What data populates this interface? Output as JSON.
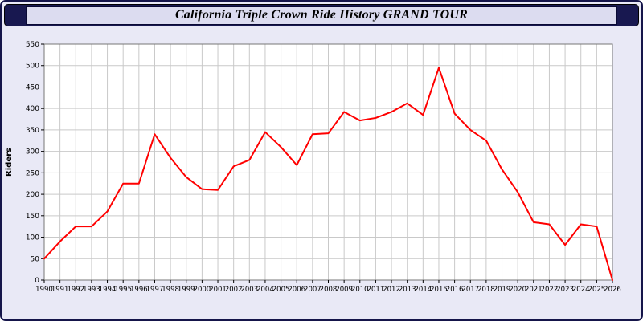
{
  "title": "California Triple Crown Ride History GRAND TOUR",
  "chart_data": {
    "type": "line",
    "title": "California Triple Crown Ride History GRAND TOUR",
    "xlabel": "",
    "ylabel": "Riders",
    "ylim": [
      0,
      550
    ],
    "ytick_step": 50,
    "grid": true,
    "legend_position": "none",
    "line_color": "#ff0000",
    "x": [
      1990,
      1991,
      1992,
      1993,
      1994,
      1995,
      1996,
      1997,
      1998,
      1999,
      2000,
      2001,
      2002,
      2003,
      2004,
      2005,
      2006,
      2007,
      2008,
      2009,
      2010,
      2011,
      2012,
      2013,
      2014,
      2015,
      2016,
      2017,
      2018,
      2019,
      2020,
      2021,
      2022,
      2023,
      2024,
      2025,
      2026
    ],
    "series": [
      {
        "name": "Riders",
        "values": [
          50,
          90,
          125,
          125,
          160,
          225,
          225,
          340,
          285,
          240,
          212,
          210,
          265,
          280,
          345,
          310,
          268,
          340,
          342,
          392,
          372,
          378,
          392,
          412,
          385,
          495,
          388,
          350,
          325,
          258,
          205,
          135,
          130,
          82,
          130,
          125,
          0
        ]
      }
    ]
  },
  "colors": {
    "page_bg": "#e9e9f6",
    "titlebar_bg": "#181850",
    "titlebox_bg": "#dcdcf0",
    "plot_bg": "#ffffff",
    "grid": "#c9c9c9",
    "axis": "#000000",
    "line": "#ff0000"
  }
}
